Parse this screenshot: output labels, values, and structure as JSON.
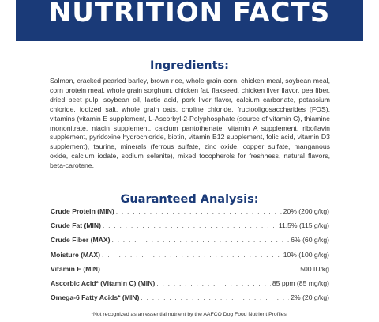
{
  "banner": {
    "title": "NUTRITION FACTS",
    "color": "#1a3a78"
  },
  "ingredients": {
    "heading": "Ingredients:",
    "text": "Salmon, cracked pearled barley, brown rice, whole grain corn, chicken meal, soybean meal, corn protein meal, whole grain sorghum, chicken fat, flaxseed, chicken liver flavor, pea fiber, dried beet pulp, soybean oil, lactic acid, pork liver flavor, calcium carbonate, potassium chloride, iodized salt, whole grain oats, choline chloride, fructooligosaccharides (FOS), vitamins (vitamin E supplement, L-Ascorbyl-2-Polyphosphate (source of vitamin C), thiamine mononitrate, niacin supplement, calcium pantothenate, vitamin A supplement, riboflavin supplement, pyridoxine hydrochloride, biotin, vitamin B12 supplement, folic acid, vitamin D3 supplement), taurine, minerals (ferrous sulfate, zinc oxide, copper sulfate, manganous oxide, calcium iodate, sodium selenite), mixed tocopherols for freshness, natural flavors, beta-carotene."
  },
  "analysis": {
    "heading": "Guaranteed Analysis:",
    "rows": [
      {
        "label": "Crude Protein (MIN)",
        "value": "20% (200 g/kg)"
      },
      {
        "label": "Crude Fat (MIN)",
        "value": "11.5% (115 g/kg)"
      },
      {
        "label": "Crude Fiber (MAX)",
        "value": "6% (60 g/kg)"
      },
      {
        "label": "Moisture (MAX)",
        "value": "10% (100 g/kg)"
      },
      {
        "label": "Vitamin E (MIN)",
        "value": "500 IU/kg"
      },
      {
        "label": "Ascorbic Acid* (Vitamin C) (MIN)",
        "value": "85 ppm (85 mg/kg)"
      },
      {
        "label": "Omega-6 Fatty Acids* (MIN)",
        "value": "2% (20 g/kg)"
      }
    ]
  },
  "footnote": "*Not recognized as an essential nutrient by the AAFCO Dog Food Nutrient Profiles."
}
